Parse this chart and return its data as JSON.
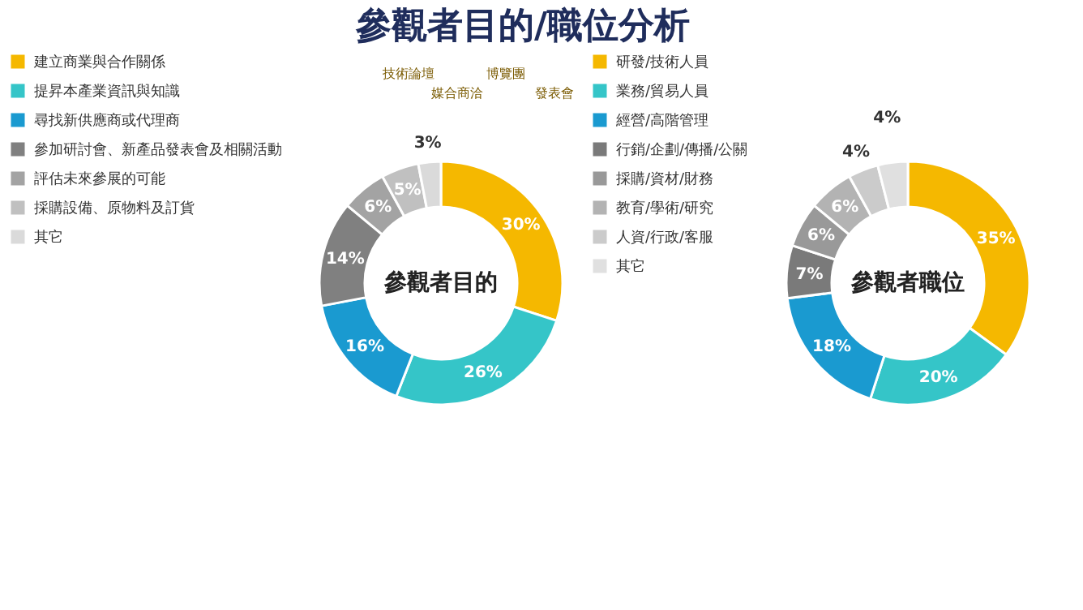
{
  "chart_data": [
    {
      "type": "donut",
      "title": "參觀者目的/職位分析",
      "categories": [
        "建立商業與合作關係",
        "提昇本產業資訊與知識",
        "尋找新供應商或代理商",
        "參加研討會、新產品發表會及相關活動",
        "評估未來參展的可能",
        "採購設備、原物料及訂貨",
        "其它"
      ],
      "values": [
        30,
        26,
        16,
        14,
        6,
        5,
        3
      ],
      "value_labels": [
        "30%",
        "26%",
        "16%",
        "14%",
        "6%",
        "5%",
        "3%"
      ],
      "colors": [
        "#f5b800",
        "#35c5c8",
        "#1a9ad0",
        "#808080",
        "#a3a3a3",
        "#c0c0c0",
        "#dadada"
      ],
      "legend": "left",
      "annotations": [
        "參觀者目的",
        "技術論壇",
        "媒合商洽",
        "博覽團",
        "發表會"
      ]
    },
    {
      "type": "donut",
      "categories": [
        "研發/技術人員",
        "業務/貿易人員",
        "經營/高階管理",
        "行銷/企劃/傳播/公關",
        "採購/資材/財務",
        "教育/學術/研究",
        "人資/行政/客服",
        "其它"
      ],
      "values": [
        35,
        20,
        18,
        7,
        6,
        6,
        4,
        4
      ],
      "value_labels": [
        "35%",
        "20%",
        "18%",
        "7%",
        "6%",
        "6%",
        "4%",
        "4%"
      ],
      "colors": [
        "#f5b800",
        "#35c5c8",
        "#1a9ad0",
        "#7a7a7a",
        "#999999",
        "#b3b3b3",
        "#cbcbcb",
        "#e0e0e0"
      ],
      "legend": "left",
      "annotations": [
        "參觀者職位"
      ]
    }
  ]
}
